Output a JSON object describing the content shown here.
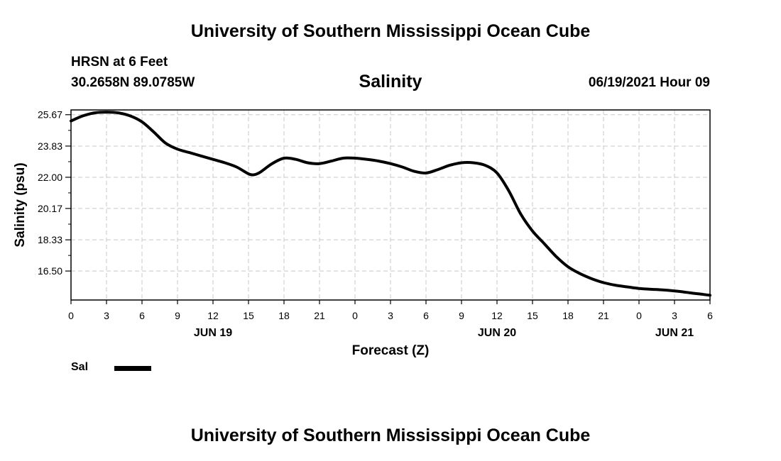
{
  "header": {
    "title_top": "University of Southern Mississippi Ocean Cube",
    "station": "HRSN at 6 Feet",
    "coords": "30.2658N  89.0785W",
    "variable": "Salinity",
    "datetime": "06/19/2021 Hour 09"
  },
  "footer": {
    "title_bottom": "University of Southern Mississippi Ocean Cube"
  },
  "legend": {
    "label": "Sal"
  },
  "colors": {
    "line": "#000000",
    "grid": "#c8c8c8"
  },
  "chart_data": {
    "type": "line",
    "title": "Salinity",
    "xlabel": "Forecast (Z)",
    "ylabel": "Salinity (psu)",
    "xlim": [
      0,
      54
    ],
    "ylim": [
      14.8,
      25.95
    ],
    "yticks": [
      16.5,
      18.33,
      20.17,
      22.0,
      23.83,
      25.67
    ],
    "ytick_labels": [
      "16.50",
      "18.33",
      "20.17",
      "22.00",
      "23.83",
      "25.67"
    ],
    "xticks": [
      0,
      3,
      6,
      9,
      12,
      15,
      18,
      21,
      24,
      27,
      30,
      33,
      36,
      39,
      42,
      45,
      48,
      51,
      54
    ],
    "xtick_labels": [
      "0",
      "3",
      "6",
      "9",
      "12",
      "15",
      "18",
      "21",
      "0",
      "3",
      "6",
      "9",
      "12",
      "15",
      "18",
      "21",
      "0",
      "3",
      "6"
    ],
    "day_labels": [
      {
        "x": 12,
        "label": "JUN 19"
      },
      {
        "x": 36,
        "label": "JUN 20"
      },
      {
        "x": 51,
        "label": "JUN 21"
      }
    ],
    "series": [
      {
        "name": "Sal",
        "x": [
          0,
          1,
          2,
          3,
          4,
          5,
          6,
          7,
          8,
          9,
          10,
          11,
          12,
          13,
          14,
          15,
          15.5,
          16,
          17,
          18,
          19,
          20,
          21,
          22,
          23,
          24,
          25,
          26,
          27,
          28,
          29,
          30,
          31,
          32,
          33,
          34,
          35,
          36,
          37,
          38,
          39,
          40,
          41,
          42,
          43,
          44,
          45,
          46,
          47,
          48,
          49,
          50,
          51,
          52,
          53,
          54
        ],
        "values": [
          25.3,
          25.6,
          25.78,
          25.82,
          25.78,
          25.6,
          25.25,
          24.65,
          24.0,
          23.65,
          23.45,
          23.25,
          23.05,
          22.85,
          22.6,
          22.2,
          22.15,
          22.3,
          22.8,
          23.12,
          23.05,
          22.85,
          22.8,
          22.95,
          23.12,
          23.12,
          23.05,
          22.95,
          22.8,
          22.6,
          22.35,
          22.25,
          22.45,
          22.7,
          22.85,
          22.85,
          22.7,
          22.25,
          21.2,
          19.85,
          18.85,
          18.1,
          17.35,
          16.75,
          16.35,
          16.05,
          15.82,
          15.67,
          15.57,
          15.48,
          15.43,
          15.39,
          15.33,
          15.25,
          15.16,
          15.08
        ]
      }
    ]
  }
}
